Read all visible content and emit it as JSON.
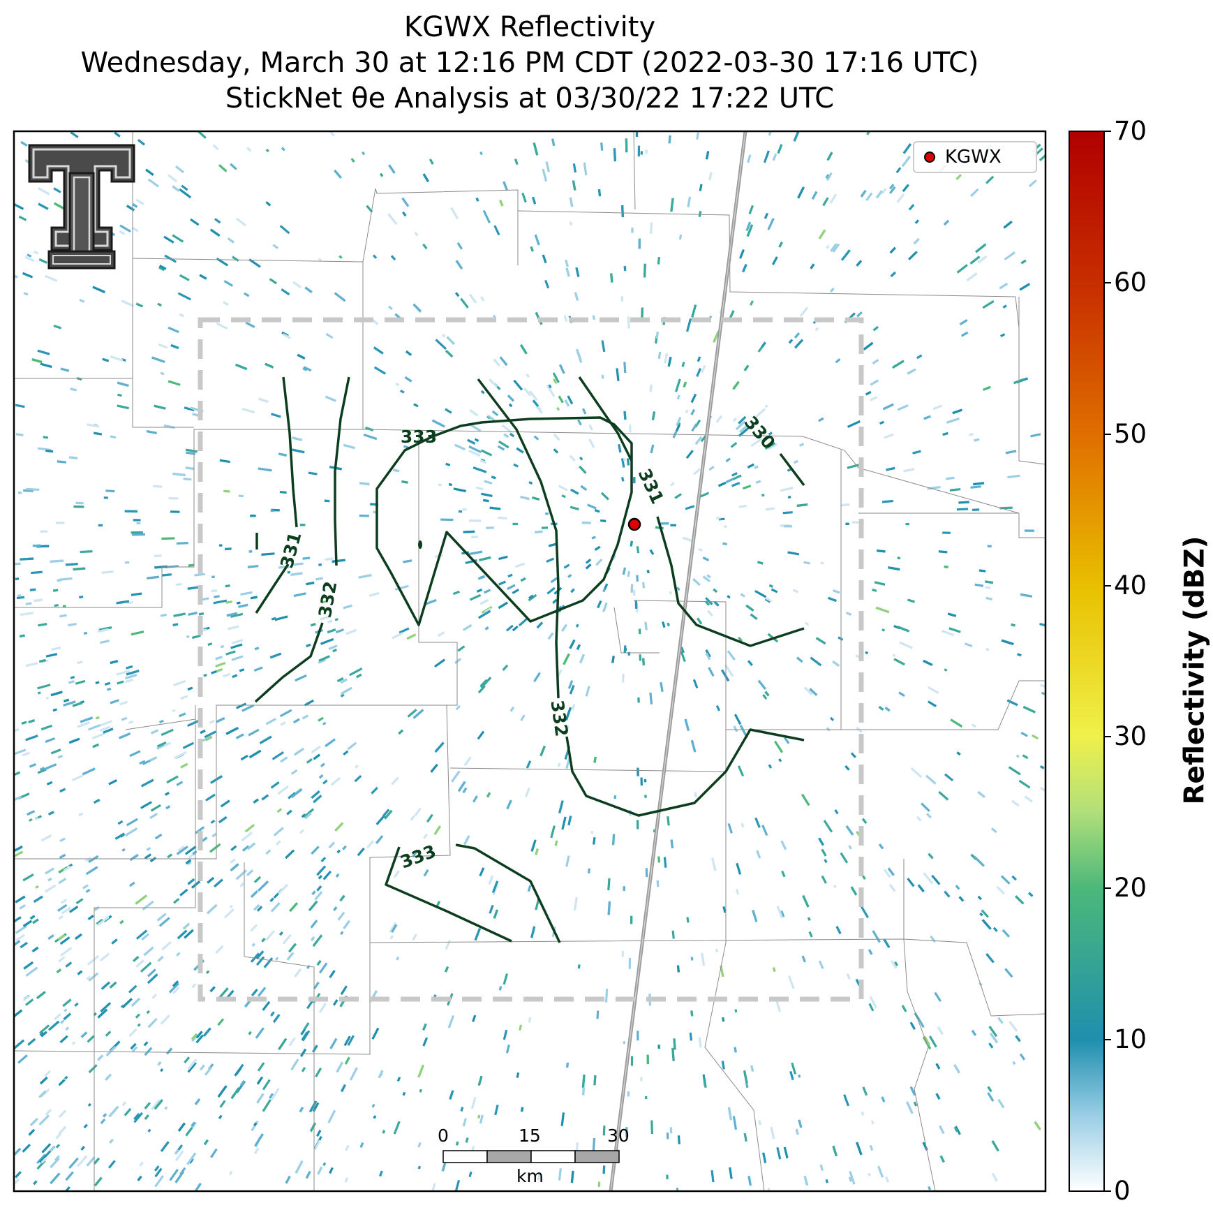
{
  "title": {
    "line1": "KGWX Reflectivity",
    "line2": "Wednesday, March 30 at 12:16 PM CDT (2022-03-30 17:16 UTC)",
    "line3": "StickNet θe Analysis at 03/30/22 17:22 UTC"
  },
  "legend": {
    "label": "KGWX",
    "marker_color": "#e00000"
  },
  "colorbar": {
    "label": "Reflectivity (dBZ)",
    "ticks": [
      "0",
      "10",
      "20",
      "30",
      "40",
      "50",
      "60",
      "70"
    ],
    "range": [
      0,
      70
    ],
    "colors": [
      "#ffffff",
      "#1f8fae",
      "#4cb87a",
      "#b3e07a",
      "#f0f04a",
      "#e8c000",
      "#e07000",
      "#c83000",
      "#b00000"
    ]
  },
  "scale_bar": {
    "ticks": [
      "0",
      "15",
      "30"
    ],
    "unit": "km"
  },
  "contour_labels": [
    "333",
    "331",
    "332",
    "331",
    "330",
    "332",
    "333"
  ],
  "radar_site": "KGWX",
  "logo": "texas-tech-double-t-logo"
}
